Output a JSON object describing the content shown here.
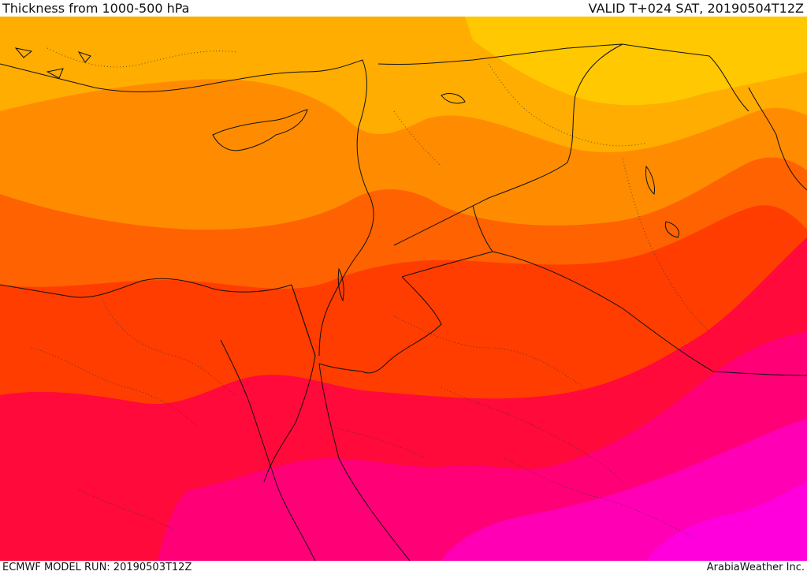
{
  "header": {
    "title": "Thickness from 1000-500 hPa",
    "valid_time": "VALID T+024 SAT, 20190504T12Z"
  },
  "footer": {
    "model_run": "ECMWF MODEL RUN: 20190503T12Z",
    "credit": "ArabiaWeather Inc."
  },
  "map": {
    "field": "thickness_1000_500_hpa",
    "palette": {
      "band_yellow": "#ffe600",
      "band_gold": "#ffc800",
      "band_amber": "#ffad00",
      "band_orange": "#ff8c00",
      "band_dark_orange": "#ff6200",
      "band_red_orange": "#ff3d00",
      "band_red": "#ff0a3a",
      "band_crimson_pink": "#ff0077",
      "band_magenta": "#ff00b4",
      "band_hot_magenta": "#ff00dd",
      "border_color": "#111111",
      "coastline_color": "#111111"
    }
  }
}
